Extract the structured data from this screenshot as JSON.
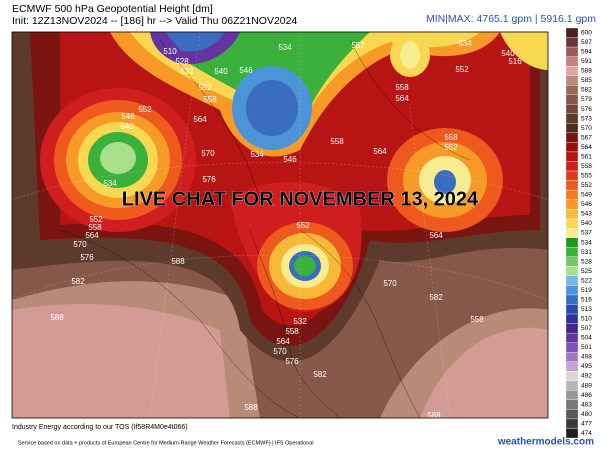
{
  "header": {
    "title": "ECMWF 500 hPa Geopotential Height [dm]",
    "init": "Init: 12Z13NOV2024 -- [186] hr --> Valid Thu 06Z21NOV2024",
    "minmax": "MIN|MAX: 4765.1 gpm | 5916.1 gpm"
  },
  "map": {
    "overlay": "LIVE CHAT FOR NOVEMBER 13, 2024",
    "contour_labels": [
      "510",
      "534",
      "552",
      "534",
      "540",
      "516",
      "528",
      "522",
      "540",
      "546",
      "552",
      "552",
      "558",
      "558",
      "564",
      "552",
      "546",
      "540",
      "564",
      "534",
      "570",
      "546",
      "558",
      "564",
      "558",
      "552",
      "576",
      "534",
      "552",
      "558",
      "564",
      "570",
      "576",
      "582",
      "588",
      "564",
      "552",
      "570",
      "582",
      "558",
      "532",
      "558",
      "564",
      "570",
      "576",
      "582",
      "588",
      "588",
      "588"
    ]
  },
  "colorbar": {
    "labels": [
      600,
      597,
      594,
      591,
      588,
      585,
      582,
      579,
      576,
      573,
      570,
      567,
      564,
      561,
      558,
      555,
      552,
      549,
      546,
      543,
      540,
      537,
      534,
      531,
      528,
      525,
      522,
      519,
      516,
      513,
      510,
      507,
      504,
      501,
      498,
      495,
      492,
      489,
      486,
      483,
      480,
      477,
      474
    ],
    "colors": [
      "#4a2020",
      "#6e3434",
      "#9a5a5a",
      "#c88080",
      "#e0a4a4",
      "#b88a78",
      "#9a6a58",
      "#86584a",
      "#724838",
      "#5e3a2c",
      "#4a2c22",
      "#7a1410",
      "#9a1010",
      "#b81414",
      "#d01e1e",
      "#e23a1c",
      "#ee5a1e",
      "#f47a20",
      "#f89a28",
      "#f8b838",
      "#f8d850",
      "#f8ec90",
      "#1e9a1e",
      "#3cb03c",
      "#74c862",
      "#a8e08c",
      "#70b8e8",
      "#4c94d8",
      "#3a6cc0",
      "#2c4aa8",
      "#30309a",
      "#46248a",
      "#6434a0",
      "#8252b2",
      "#a474c4",
      "#c4a2d8",
      "#d8d8d8",
      "#b8b8b8",
      "#989898",
      "#787878",
      "#585858",
      "#3c3c3c",
      "#202020"
    ]
  },
  "footer": {
    "tos": "Industry Energy according to our TOS (If58R4M0e4t066)",
    "service": "Service based on data + products of European Centre for Medium-Range Weather Forecasts (ECMWF) | IFS Operational",
    "brand": "weathermodels.com"
  }
}
